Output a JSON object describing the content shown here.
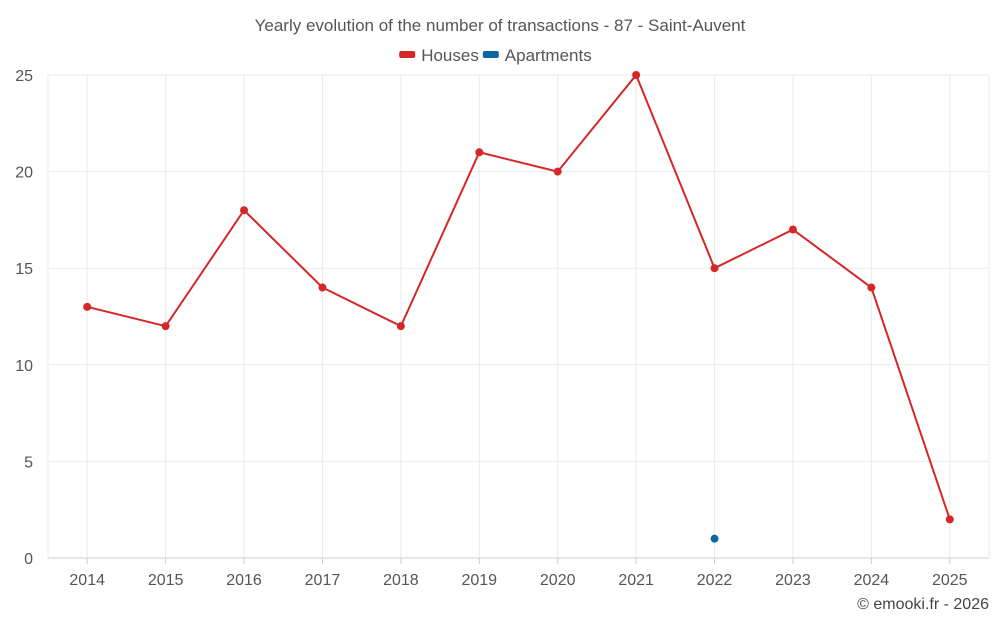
{
  "credit": "© emooki.fr - 2026",
  "colors": {
    "houses": "#d62728",
    "apartments": "#0a67a3",
    "grid": "#ebebeb",
    "axis": "#cccccc",
    "text": "#555555"
  },
  "chart_data": {
    "type": "line",
    "title": "Yearly evolution of the number of transactions - 87 - Saint-Auvent",
    "xlabel": "",
    "ylabel": "",
    "categories": [
      "2014",
      "2015",
      "2016",
      "2017",
      "2018",
      "2019",
      "2020",
      "2021",
      "2022",
      "2023",
      "2024",
      "2025"
    ],
    "ylim": [
      0,
      25
    ],
    "yticks": [
      0,
      5,
      10,
      15,
      20,
      25
    ],
    "grid": true,
    "legend_position": "top-center",
    "series": [
      {
        "name": "Houses",
        "color": "#d62728",
        "values": [
          13,
          12,
          18,
          14,
          12,
          21,
          20,
          25,
          15,
          17,
          14,
          2
        ]
      },
      {
        "name": "Apartments",
        "color": "#0a67a3",
        "values": [
          null,
          null,
          null,
          null,
          null,
          null,
          null,
          null,
          1,
          null,
          null,
          null
        ]
      }
    ]
  }
}
